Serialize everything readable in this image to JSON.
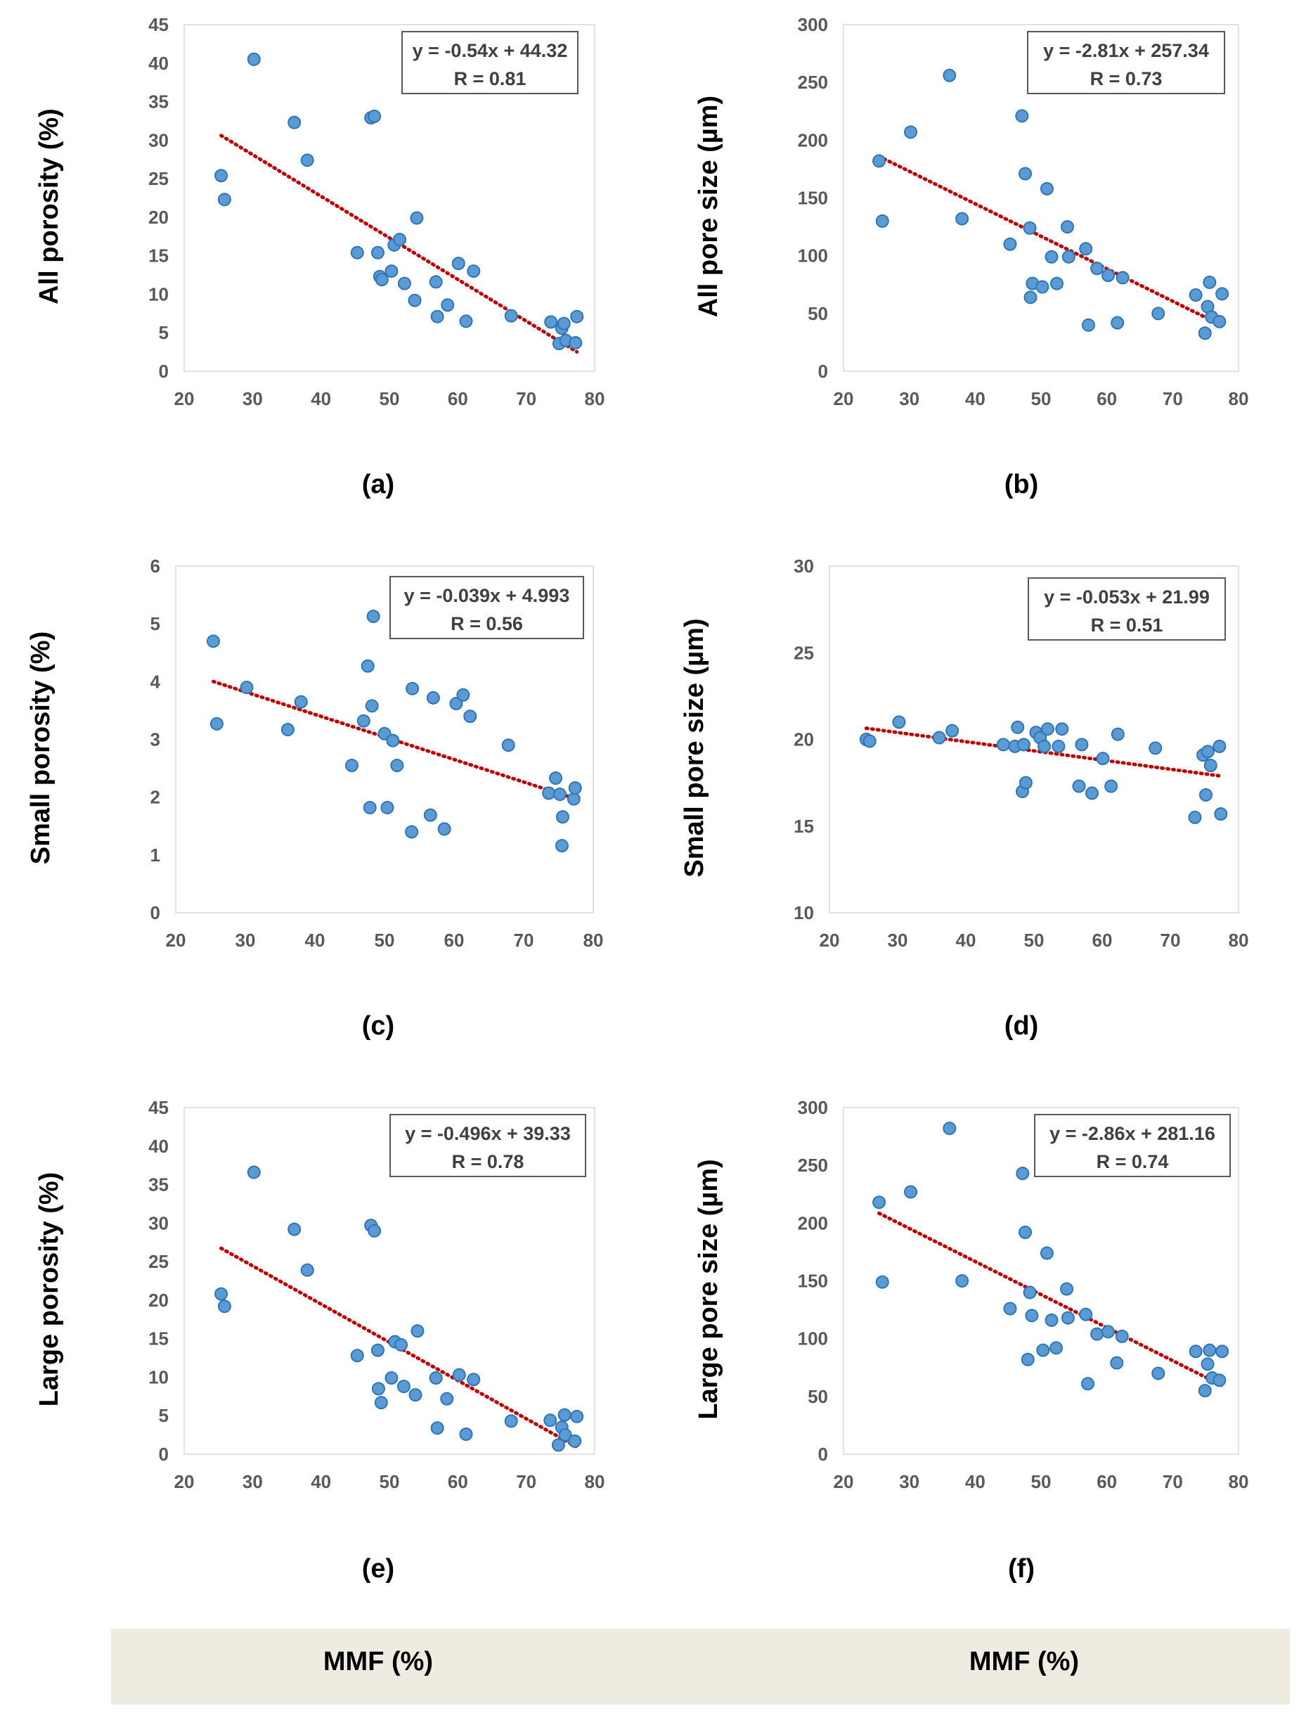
{
  "colors": {
    "point_fill": "#5b9bd5",
    "point_stroke": "#2e75b6",
    "trendline": "#c00000",
    "footer_bg": "#eeece1",
    "tick_text": "#595959"
  },
  "footer": {
    "left_label": "MMF (%)",
    "right_label": "MMF (%)"
  },
  "chart_data": [
    {
      "id": "a",
      "letter": "(a)",
      "type": "scatter",
      "ylabel": "All porosity (%)",
      "xlabel": "MMF (%)",
      "xlim": [
        20,
        80
      ],
      "xticks": [
        "20",
        "30",
        "40",
        "50",
        "60",
        "70",
        "80"
      ],
      "ylim": [
        0,
        45
      ],
      "yticks": [
        "0",
        "5",
        "10",
        "15",
        "20",
        "25",
        "30",
        "35",
        "40",
        "45"
      ],
      "equation": "y = -0.54x + 44.32",
      "r_label": "R = 0.81",
      "trend": {
        "slope": -0.54,
        "intercept": 44.32,
        "x_range": [
          25.4,
          77.4
        ]
      },
      "points": [
        [
          25.4,
          25.4
        ],
        [
          25.9,
          22.3
        ],
        [
          30.2,
          40.5
        ],
        [
          36.1,
          32.3
        ],
        [
          38.0,
          27.4
        ],
        [
          45.3,
          15.4
        ],
        [
          47.3,
          32.9
        ],
        [
          47.8,
          33.1
        ],
        [
          48.3,
          15.4
        ],
        [
          48.6,
          12.3
        ],
        [
          48.9,
          11.9
        ],
        [
          50.3,
          13.0
        ],
        [
          50.7,
          16.4
        ],
        [
          51.5,
          17.1
        ],
        [
          52.2,
          11.4
        ],
        [
          53.7,
          9.2
        ],
        [
          54.0,
          19.9
        ],
        [
          56.8,
          11.6
        ],
        [
          57.0,
          7.1
        ],
        [
          58.5,
          8.6
        ],
        [
          60.1,
          14.0
        ],
        [
          61.2,
          6.5
        ],
        [
          62.3,
          13.0
        ],
        [
          67.8,
          7.2
        ],
        [
          73.6,
          6.4
        ],
        [
          74.8,
          3.6
        ],
        [
          75.2,
          5.6
        ],
        [
          75.5,
          6.2
        ],
        [
          75.8,
          4.0
        ],
        [
          77.2,
          3.7
        ],
        [
          77.4,
          7.1
        ]
      ]
    },
    {
      "id": "b",
      "letter": "(b)",
      "type": "scatter",
      "ylabel": "All pore size (µm)",
      "xlabel": "MMF (%)",
      "xlim": [
        20,
        80
      ],
      "xticks": [
        "20",
        "30",
        "40",
        "50",
        "60",
        "70",
        "80"
      ],
      "ylim": [
        0,
        300
      ],
      "yticks": [
        "0",
        "50",
        "100",
        "150",
        "200",
        "250",
        "300"
      ],
      "equation": "y = -2.81x + 257.34",
      "r_label": "R = 0.73",
      "trend": {
        "slope": -2.81,
        "intercept": 257.34,
        "x_range": [
          25.4,
          77.4
        ]
      },
      "points": [
        [
          25.4,
          182
        ],
        [
          25.9,
          130
        ],
        [
          30.2,
          207
        ],
        [
          36.1,
          256
        ],
        [
          38.0,
          132
        ],
        [
          45.3,
          110
        ],
        [
          47.1,
          221
        ],
        [
          47.6,
          171
        ],
        [
          48.3,
          124
        ],
        [
          48.4,
          64
        ],
        [
          48.7,
          76
        ],
        [
          50.2,
          73
        ],
        [
          50.9,
          158
        ],
        [
          51.6,
          99
        ],
        [
          52.4,
          76
        ],
        [
          54.0,
          125
        ],
        [
          54.2,
          99
        ],
        [
          56.8,
          106
        ],
        [
          57.2,
          40
        ],
        [
          58.5,
          89
        ],
        [
          60.2,
          83
        ],
        [
          61.6,
          42
        ],
        [
          62.4,
          81
        ],
        [
          67.8,
          50
        ],
        [
          73.5,
          66
        ],
        [
          74.9,
          33
        ],
        [
          75.3,
          56
        ],
        [
          75.6,
          77
        ],
        [
          75.9,
          47
        ],
        [
          77.1,
          43
        ],
        [
          77.5,
          67
        ]
      ]
    },
    {
      "id": "c",
      "letter": "(c)",
      "type": "scatter",
      "ylabel": "Small porosity (%)",
      "xlabel": "MMF (%)",
      "xlim": [
        20,
        80
      ],
      "xticks": [
        "20",
        "30",
        "40",
        "50",
        "60",
        "70",
        "80"
      ],
      "ylim": [
        0,
        6
      ],
      "yticks": [
        "0",
        "1",
        "2",
        "3",
        "4",
        "5",
        "6"
      ],
      "equation": "y = -0.039x + 4.993",
      "r_label": "R = 0.56",
      "trend": {
        "slope": -0.039,
        "intercept": 4.993,
        "x_range": [
          25.4,
          77.4
        ]
      },
      "points": [
        [
          25.4,
          4.7
        ],
        [
          25.9,
          3.27
        ],
        [
          30.2,
          3.9
        ],
        [
          36.1,
          3.17
        ],
        [
          38.0,
          3.65
        ],
        [
          45.3,
          2.55
        ],
        [
          47.0,
          3.32
        ],
        [
          47.6,
          4.27
        ],
        [
          47.9,
          1.82
        ],
        [
          48.2,
          3.58
        ],
        [
          48.4,
          5.13
        ],
        [
          50.0,
          3.1
        ],
        [
          50.4,
          1.82
        ],
        [
          51.2,
          2.98
        ],
        [
          51.8,
          2.55
        ],
        [
          53.9,
          1.4
        ],
        [
          54.0,
          3.88
        ],
        [
          56.6,
          1.69
        ],
        [
          57.0,
          3.72
        ],
        [
          58.6,
          1.45
        ],
        [
          60.3,
          3.62
        ],
        [
          61.3,
          3.77
        ],
        [
          62.3,
          3.4
        ],
        [
          67.8,
          2.9
        ],
        [
          73.6,
          2.07
        ],
        [
          74.6,
          2.33
        ],
        [
          75.2,
          2.05
        ],
        [
          75.6,
          1.66
        ],
        [
          75.5,
          1.16
        ],
        [
          77.2,
          1.97
        ],
        [
          77.4,
          2.16
        ]
      ]
    },
    {
      "id": "d",
      "letter": "(d)",
      "type": "scatter",
      "ylabel": "Small pore size (µm)",
      "xlabel": "MMF (%)",
      "xlim": [
        20,
        80
      ],
      "xticks": [
        "20",
        "30",
        "40",
        "50",
        "60",
        "70",
        "80"
      ],
      "ylim": [
        10,
        30
      ],
      "yticks": [
        "10",
        "15",
        "20",
        "25",
        "30"
      ],
      "equation": "y = -0.053x + 21.99",
      "r_label": "R = 0.51",
      "trend": {
        "slope": -0.053,
        "intercept": 21.99,
        "x_range": [
          25.4,
          77.4
        ]
      },
      "points": [
        [
          25.4,
          20.0
        ],
        [
          25.9,
          19.9
        ],
        [
          30.2,
          21.0
        ],
        [
          36.1,
          20.1
        ],
        [
          38.0,
          20.5
        ],
        [
          45.5,
          19.7
        ],
        [
          47.2,
          19.6
        ],
        [
          47.6,
          20.7
        ],
        [
          48.3,
          17.0
        ],
        [
          48.5,
          19.7
        ],
        [
          48.8,
          17.5
        ],
        [
          50.3,
          20.4
        ],
        [
          50.9,
          20.1
        ],
        [
          51.5,
          19.6
        ],
        [
          52.0,
          20.6
        ],
        [
          53.6,
          19.6
        ],
        [
          54.1,
          20.6
        ],
        [
          56.6,
          17.3
        ],
        [
          57.0,
          19.7
        ],
        [
          58.5,
          16.9
        ],
        [
          60.1,
          18.9
        ],
        [
          61.3,
          17.3
        ],
        [
          62.3,
          20.3
        ],
        [
          67.8,
          19.5
        ],
        [
          73.6,
          15.5
        ],
        [
          74.8,
          19.1
        ],
        [
          75.2,
          16.8
        ],
        [
          75.5,
          19.3
        ],
        [
          75.9,
          18.5
        ],
        [
          77.2,
          19.6
        ],
        [
          77.4,
          15.7
        ]
      ]
    },
    {
      "id": "e",
      "letter": "(e)",
      "type": "scatter",
      "ylabel": "Large porosity (%)",
      "xlabel": "MMF (%)",
      "xlim": [
        20,
        80
      ],
      "xticks": [
        "20",
        "30",
        "40",
        "50",
        "60",
        "70",
        "80"
      ],
      "ylim": [
        0,
        45
      ],
      "yticks": [
        "0",
        "5",
        "10",
        "15",
        "20",
        "25",
        "30",
        "35",
        "40",
        "45"
      ],
      "equation": "y = -0.496x + 39.33",
      "r_label": "R = 0.78",
      "trend": {
        "slope": -0.496,
        "intercept": 39.33,
        "x_range": [
          25.4,
          77.4
        ]
      },
      "points": [
        [
          25.4,
          20.8
        ],
        [
          25.9,
          19.2
        ],
        [
          30.2,
          36.6
        ],
        [
          36.1,
          29.2
        ],
        [
          38.0,
          23.9
        ],
        [
          45.3,
          12.8
        ],
        [
          47.3,
          29.7
        ],
        [
          47.8,
          29.0
        ],
        [
          48.3,
          13.5
        ],
        [
          48.4,
          8.5
        ],
        [
          48.8,
          6.7
        ],
        [
          50.3,
          9.9
        ],
        [
          50.8,
          14.6
        ],
        [
          51.7,
          14.2
        ],
        [
          52.1,
          8.8
        ],
        [
          53.8,
          7.7
        ],
        [
          54.1,
          16.0
        ],
        [
          56.8,
          9.9
        ],
        [
          57.0,
          3.4
        ],
        [
          58.4,
          7.2
        ],
        [
          60.2,
          10.3
        ],
        [
          61.2,
          2.6
        ],
        [
          62.3,
          9.7
        ],
        [
          67.8,
          4.3
        ],
        [
          73.5,
          4.4
        ],
        [
          74.7,
          1.2
        ],
        [
          75.2,
          3.5
        ],
        [
          75.6,
          5.1
        ],
        [
          75.7,
          2.5
        ],
        [
          77.1,
          1.7
        ],
        [
          77.4,
          4.9
        ]
      ]
    },
    {
      "id": "f",
      "letter": "(f)",
      "type": "scatter",
      "ylabel": "Large pore size (µm)",
      "xlabel": "MMF (%)",
      "xlim": [
        20,
        80
      ],
      "xticks": [
        "20",
        "30",
        "40",
        "50",
        "60",
        "70",
        "80"
      ],
      "ylim": [
        0,
        300
      ],
      "yticks": [
        "0",
        "50",
        "100",
        "150",
        "200",
        "250",
        "300"
      ],
      "equation": "y = -2.86x + 281.16",
      "r_label": "R = 0.74",
      "trend": {
        "slope": -2.86,
        "intercept": 281.16,
        "x_range": [
          25.4,
          77.4
        ]
      },
      "points": [
        [
          25.4,
          218
        ],
        [
          25.9,
          149
        ],
        [
          30.2,
          227
        ],
        [
          36.1,
          282
        ],
        [
          38.0,
          150
        ],
        [
          45.3,
          126
        ],
        [
          47.2,
          243
        ],
        [
          47.6,
          192
        ],
        [
          48.0,
          82
        ],
        [
          48.3,
          140
        ],
        [
          48.6,
          120
        ],
        [
          50.3,
          90
        ],
        [
          50.9,
          174
        ],
        [
          51.6,
          116
        ],
        [
          52.3,
          92
        ],
        [
          53.9,
          143
        ],
        [
          54.1,
          118
        ],
        [
          56.8,
          121
        ],
        [
          57.1,
          61
        ],
        [
          58.5,
          104
        ],
        [
          60.2,
          106
        ],
        [
          61.5,
          79
        ],
        [
          62.3,
          102
        ],
        [
          67.8,
          70
        ],
        [
          73.5,
          89
        ],
        [
          74.9,
          55
        ],
        [
          75.3,
          78
        ],
        [
          75.6,
          90
        ],
        [
          76.0,
          66
        ],
        [
          77.1,
          64
        ],
        [
          77.5,
          89
        ]
      ]
    }
  ]
}
